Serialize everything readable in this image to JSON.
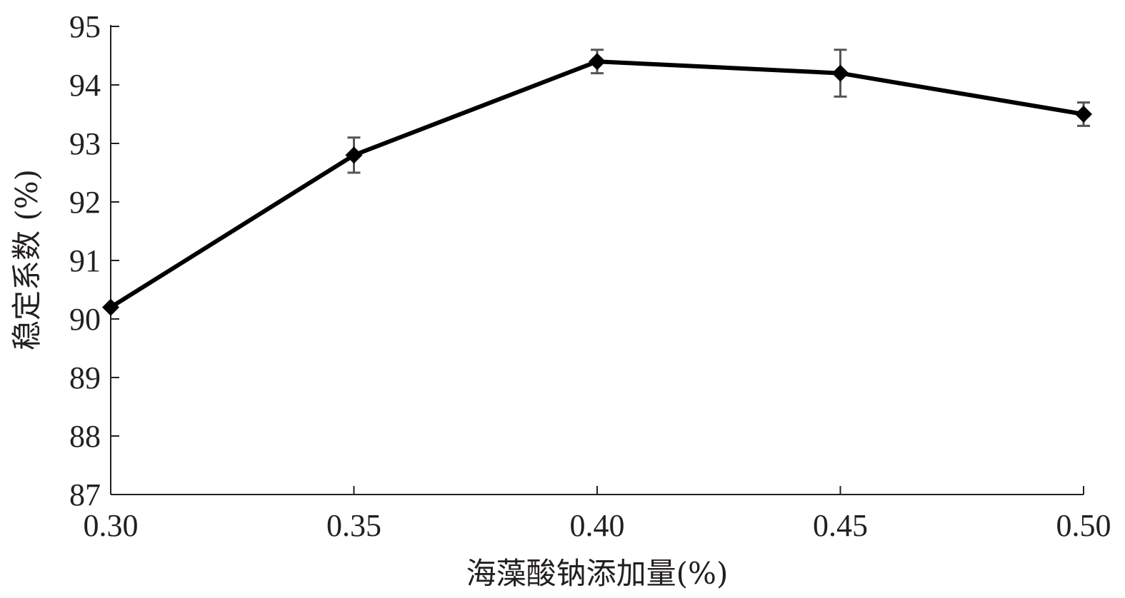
{
  "chart_data": {
    "type": "line",
    "x": [
      0.3,
      0.35,
      0.4,
      0.45,
      0.5
    ],
    "x_tick_labels": [
      "0.30",
      "0.35",
      "0.40",
      "0.45",
      "0.50"
    ],
    "y_ticks": [
      87,
      88,
      89,
      90,
      91,
      92,
      93,
      94,
      95
    ],
    "y_tick_labels": [
      "87",
      "88",
      "89",
      "90",
      "91",
      "92",
      "93",
      "94",
      "95"
    ],
    "series": [
      {
        "values": [
          90.2,
          92.8,
          94.4,
          94.2,
          93.5
        ],
        "error": [
          0.0,
          0.3,
          0.2,
          0.4,
          0.2
        ],
        "marker": "diamond",
        "color": "#000000"
      }
    ],
    "xlabel": "海藻酸钠添加量(%)",
    "ylabel": "稳定系数 (%)",
    "xlim": [
      0.3,
      0.5
    ],
    "ylim": [
      87,
      95
    ],
    "grid": false,
    "title": ""
  }
}
